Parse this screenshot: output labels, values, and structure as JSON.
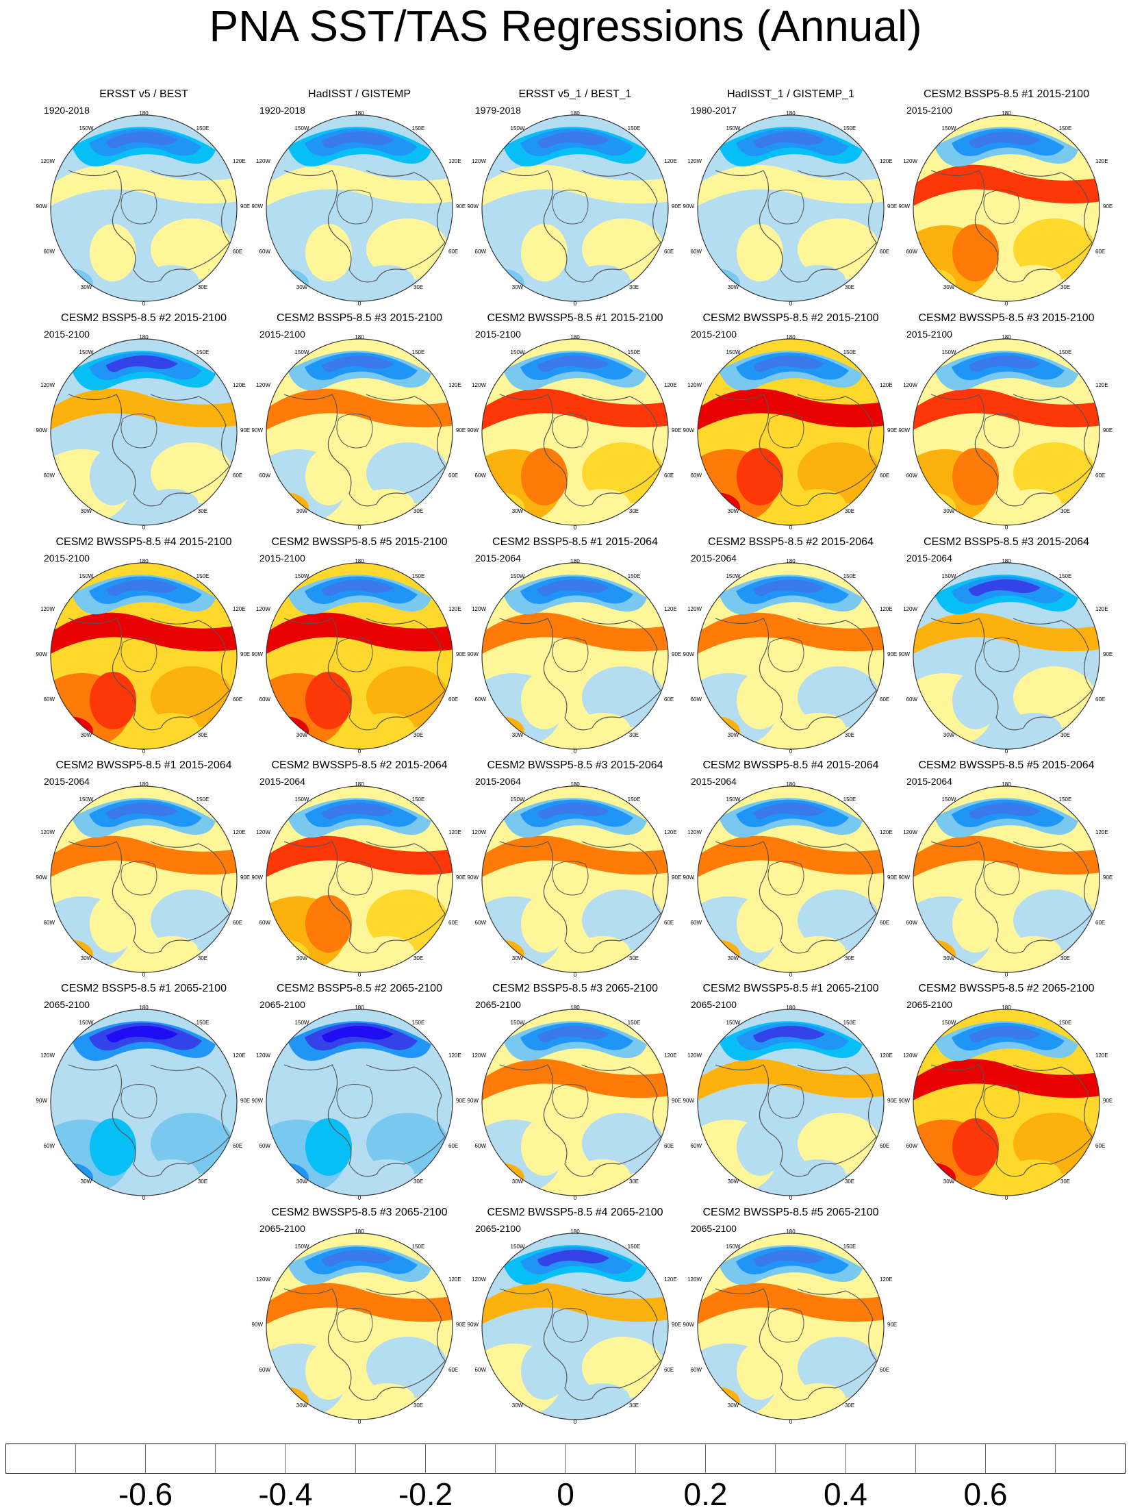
{
  "title": "PNA SST/TAS Regressions (Annual)",
  "colorbar": {
    "colors": [
      "#8a33f4",
      "#1f0ef4",
      "#3443e8",
      "#3b79ee",
      "#1f95f5",
      "#07bff5",
      "#79c8f0",
      "#b4ddf2",
      "#fff699",
      "#fed82c",
      "#fdb10d",
      "#fe7b09",
      "#fd3707",
      "#e80100",
      "#cd1817",
      "#fcb0b6"
    ],
    "labels": [
      "-0.6",
      "-0.4",
      "-0.2",
      "0",
      "0.2",
      "0.4",
      "0.6"
    ]
  },
  "axis_labels": {
    "top": "180",
    "top_right": "150E",
    "right_upper": "120E",
    "right": "90E",
    "right_lower": "60E",
    "bottom_right": "30E",
    "bottom": "0",
    "bottom_left": "30W",
    "left_lower": "60W",
    "left": "90W",
    "left_upper": "120W",
    "top_left": "150W"
  },
  "panels": [
    {
      "title": "ERSST v5 / BEST",
      "period": "1920-2018",
      "pattern": "obs"
    },
    {
      "title": "HadISST / GISTEMP",
      "period": "1920-2018",
      "pattern": "obs"
    },
    {
      "title": "ERSST v5_1 / BEST_1",
      "period": "1979-2018",
      "pattern": "obs"
    },
    {
      "title": "HadISST_1 / GISTEMP_1",
      "period": "1980-2017",
      "pattern": "obs"
    },
    {
      "title": "CESM2 BSSP5-8.5 #1 2015-2100",
      "period": "2015-2100",
      "pattern": "warm"
    },
    {
      "title": "CESM2 BSSP5-8.5 #2 2015-2100",
      "period": "2015-2100",
      "pattern": "cool"
    },
    {
      "title": "CESM2 BSSP5-8.5 #3 2015-2100",
      "period": "2015-2100",
      "pattern": "mixed"
    },
    {
      "title": "CESM2 BWSSP5-8.5 #1 2015-2100",
      "period": "2015-2100",
      "pattern": "warm"
    },
    {
      "title": "CESM2 BWSSP5-8.5 #2 2015-2100",
      "period": "2015-2100",
      "pattern": "hot"
    },
    {
      "title": "CESM2 BWSSP5-8.5 #3 2015-2100",
      "period": "2015-2100",
      "pattern": "warm"
    },
    {
      "title": "CESM2 BWSSP5-8.5 #4 2015-2100",
      "period": "2015-2100",
      "pattern": "hot"
    },
    {
      "title": "CESM2 BWSSP5-8.5 #5 2015-2100",
      "period": "2015-2100",
      "pattern": "hot"
    },
    {
      "title": "CESM2 BSSP5-8.5 #1 2015-2064",
      "period": "2015-2064",
      "pattern": "mixed"
    },
    {
      "title": "CESM2 BSSP5-8.5 #2 2015-2064",
      "period": "2015-2064",
      "pattern": "mixed"
    },
    {
      "title": "CESM2 BSSP5-8.5 #3 2015-2064",
      "period": "2015-2064",
      "pattern": "cool"
    },
    {
      "title": "CESM2 BWSSP5-8.5 #1 2015-2064",
      "period": "2015-2064",
      "pattern": "mixed"
    },
    {
      "title": "CESM2 BWSSP5-8.5 #2 2015-2064",
      "period": "2015-2064",
      "pattern": "warm"
    },
    {
      "title": "CESM2 BWSSP5-8.5 #3 2015-2064",
      "period": "2015-2064",
      "pattern": "mixed"
    },
    {
      "title": "CESM2 BWSSP5-8.5 #4 2015-2064",
      "period": "2015-2064",
      "pattern": "mixed"
    },
    {
      "title": "CESM2 BWSSP5-8.5 #5 2015-2064",
      "period": "2015-2064",
      "pattern": "mixed"
    },
    {
      "title": "CESM2 BSSP5-8.5 #1 2065-2100",
      "period": "2065-2100",
      "pattern": "coldest"
    },
    {
      "title": "CESM2 BSSP5-8.5 #2 2065-2100",
      "period": "2065-2100",
      "pattern": "coldest"
    },
    {
      "title": "CESM2 BSSP5-8.5 #3 2065-2100",
      "period": "2065-2100",
      "pattern": "mixed"
    },
    {
      "title": "CESM2 BWSSP5-8.5 #1 2065-2100",
      "period": "2065-2100",
      "pattern": "cool"
    },
    {
      "title": "CESM2 BWSSP5-8.5 #2 2065-2100",
      "period": "2065-2100",
      "pattern": "hot"
    },
    {
      "title": "CESM2 BWSSP5-8.5 #3 2065-2100",
      "period": "2065-2100",
      "pattern": "mixed"
    },
    {
      "title": "CESM2 BWSSP5-8.5 #4 2065-2100",
      "period": "2065-2100",
      "pattern": "cool"
    },
    {
      "title": "CESM2 BWSSP5-8.5 #5 2065-2100",
      "period": "2065-2100",
      "pattern": "mixed"
    }
  ]
}
